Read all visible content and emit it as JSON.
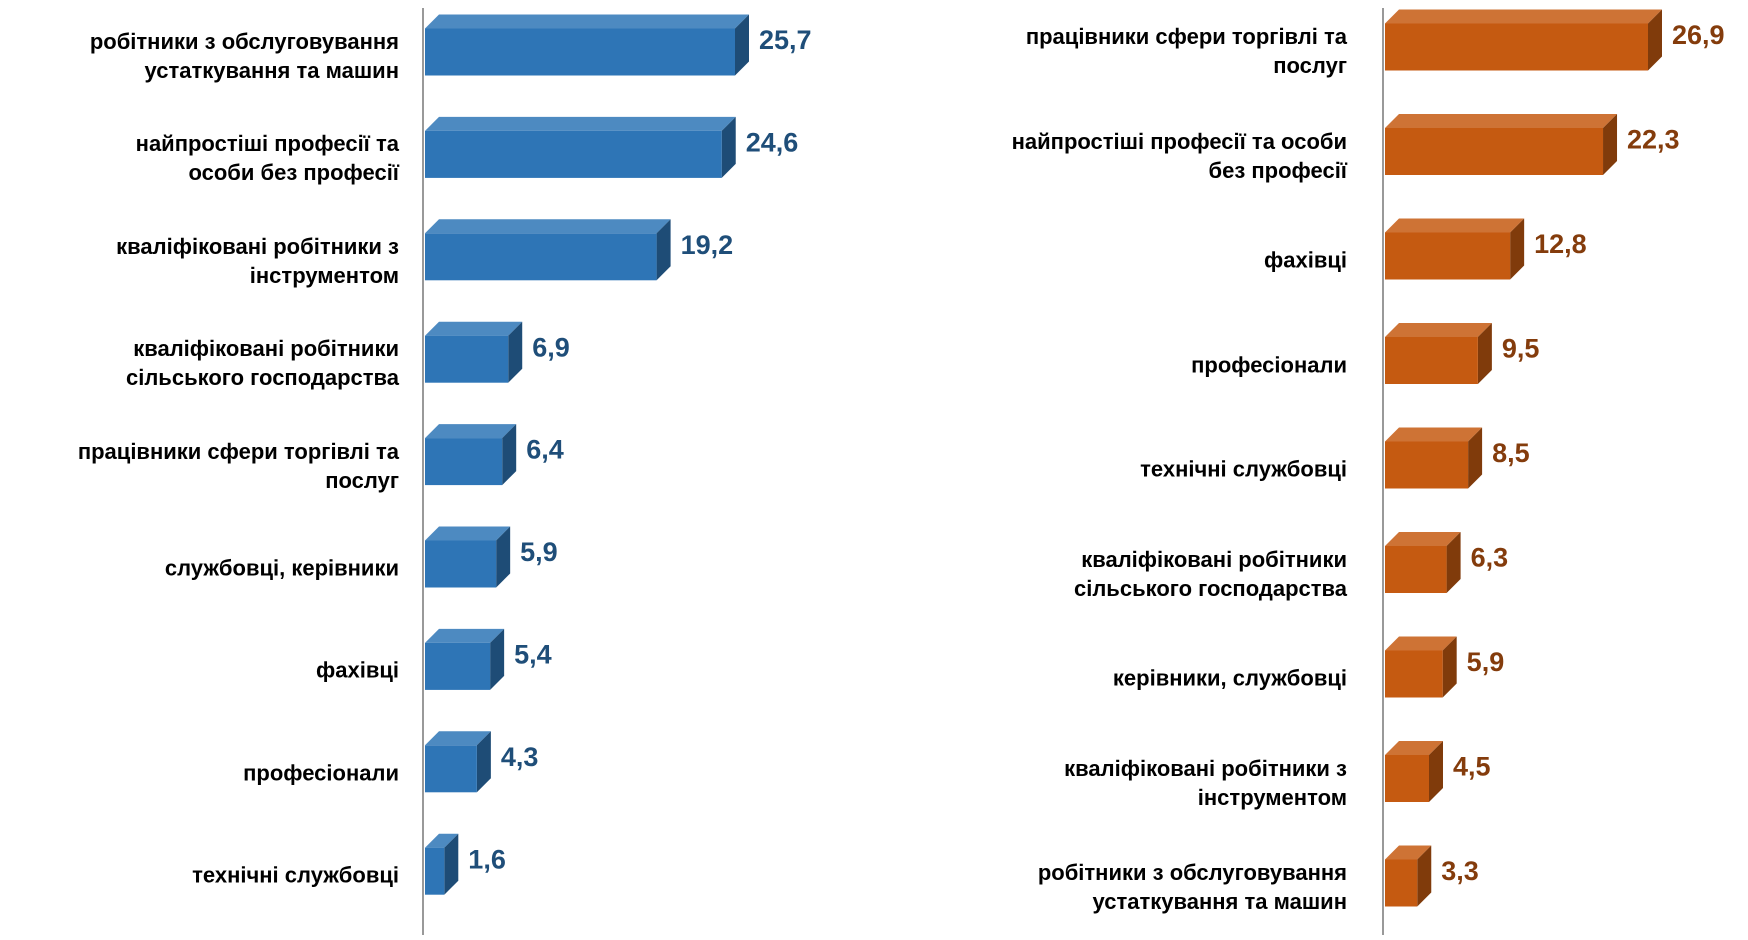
{
  "chart_data": [
    {
      "type": "bar3d",
      "orientation": "horizontal",
      "categories": [
        "робітники з обслуговування\nустаткування та машин",
        "найпростіші професії та\nособи без професії",
        "кваліфіковані робітники з\nінструментом",
        "кваліфіковані робітники\nсільського господарства",
        "працівники сфери торгівлі та\nпослуг",
        "службовці, керівники",
        "фахівці",
        "професіонали",
        "технічні службовці"
      ],
      "values": [
        25.7,
        24.6,
        19.2,
        6.9,
        6.4,
        5.9,
        5.4,
        4.3,
        1.6
      ],
      "value_labels": [
        "25,7",
        "24,6",
        "19,2",
        "6,9",
        "6,4",
        "5,9",
        "5,4",
        "4,3",
        "1,6"
      ],
      "color": "#2e75b6",
      "label_color": "#1f4e79"
    },
    {
      "type": "bar3d",
      "orientation": "horizontal",
      "categories": [
        "працівники сфери торгівлі та\nпослуг",
        "найпростіші професії та особи\nбез професії",
        "фахівці",
        "професіонали",
        "технічні службовці",
        "кваліфіковані робітники\nсільського господарства",
        "керівники, службовці",
        "кваліфіковані робітники з\nінструментом",
        "робітники з обслуговування\nустаткування та машин"
      ],
      "values": [
        26.9,
        22.3,
        12.8,
        9.5,
        8.5,
        6.3,
        5.9,
        4.5,
        3.3
      ],
      "value_labels": [
        "26,9",
        "22,3",
        "12,8",
        "9,5",
        "8,5",
        "6,3",
        "5,9",
        "4,5",
        "3,3"
      ],
      "color": "#c55a11",
      "label_color": "#843c0c"
    }
  ]
}
